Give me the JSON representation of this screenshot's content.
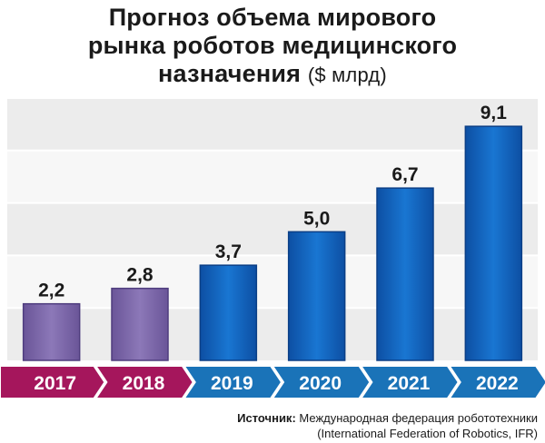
{
  "title": {
    "line1": "Прогноз объема мирового",
    "line2": "рынка роботов медицинского",
    "line3": "назначения",
    "unit": "($ млрд)"
  },
  "chart_data": {
    "type": "bar",
    "categories": [
      "2017",
      "2018",
      "2019",
      "2020",
      "2021",
      "2022"
    ],
    "values": [
      2.2,
      2.8,
      3.7,
      5.0,
      6.7,
      9.1
    ],
    "value_labels": [
      "2,2",
      "2,8",
      "3,7",
      "5,0",
      "6,7",
      "9,1"
    ],
    "title": "Прогноз объема мирового рынка роботов медицинского назначения ($ млрд)",
    "xlabel": "",
    "ylabel": "",
    "ylim": [
      0,
      10.2
    ],
    "grid": true,
    "colors": {
      "actual": "#7a64a8",
      "forecast": "#1565c0",
      "actual_arrow": "#a5165c",
      "forecast_arrow": "#1a73b8",
      "grid_band": "#ececec"
    },
    "actual_count": 2
  },
  "source": {
    "label": "Источник:",
    "text": "Международная федерация робототехники",
    "text2": "(International Federation of Robotics, IFR)"
  }
}
